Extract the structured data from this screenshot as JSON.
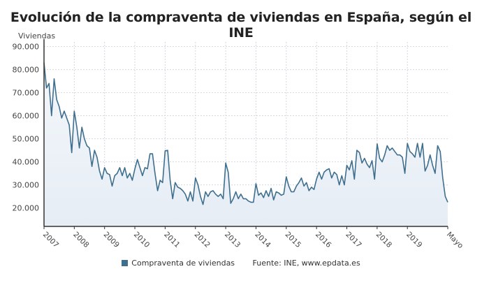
{
  "chart_data": {
    "type": "area",
    "title": "Evolución de la compraventa de viviendas en España, según el INE",
    "ylabel": "Viviendas",
    "xlabel": "",
    "ylim": [
      12000,
      92000
    ],
    "yticks": [
      20000,
      30000,
      40000,
      50000,
      60000,
      70000,
      80000,
      90000
    ],
    "ytick_labels": [
      "20.000",
      "30.000",
      "40.000",
      "50.000",
      "60.000",
      "70.000",
      "80.000",
      "90.000"
    ],
    "xtick_labels": [
      "2007",
      "2008",
      "2009",
      "2010",
      "2011",
      "2012",
      "2013",
      "2014",
      "2015",
      "2016",
      "2017",
      "2018",
      "2019",
      "Mayo"
    ],
    "x_start": "2007-01",
    "x_end": "2020-05",
    "frequency": "monthly",
    "grid": true,
    "legend_position": "bottom",
    "line_color": "#3f6f8e",
    "series": [
      {
        "name": "Compraventa de viviendas",
        "values": [
          83000,
          72000,
          74000,
          60000,
          76000,
          67000,
          64000,
          59000,
          62000,
          59000,
          56000,
          44000,
          62000,
          55000,
          46000,
          55000,
          50000,
          47000,
          46000,
          38000,
          45000,
          42000,
          36000,
          32500,
          37500,
          35000,
          34500,
          29500,
          34000,
          35000,
          37500,
          34000,
          37500,
          33000,
          35000,
          32000,
          37000,
          41000,
          37500,
          34000,
          37500,
          37000,
          43500,
          43500,
          35000,
          27500,
          32000,
          31000,
          44800,
          45000,
          32000,
          24000,
          31000,
          29000,
          28500,
          27500,
          26000,
          23000,
          27000,
          23000,
          33000,
          30000,
          25000,
          21500,
          27000,
          25000,
          27000,
          27500,
          26000,
          25000,
          26000,
          24000,
          39500,
          35500,
          22000,
          24000,
          27000,
          24000,
          26000,
          24000,
          24000,
          23000,
          22500,
          22500,
          30500,
          25500,
          26500,
          24500,
          27500,
          25000,
          28500,
          23500,
          27000,
          26500,
          25500,
          26000,
          33500,
          29500,
          27000,
          27000,
          29500,
          31000,
          33000,
          29500,
          31000,
          27500,
          29000,
          28000,
          32500,
          35500,
          32500,
          35500,
          36500,
          37000,
          33000,
          35500,
          34500,
          30000,
          34000,
          30000,
          38500,
          36500,
          40500,
          32500,
          45000,
          44000,
          39500,
          41500,
          39000,
          37500,
          40500,
          32500,
          47800,
          41500,
          40000,
          43000,
          47000,
          45000,
          46000,
          44500,
          43000,
          43000,
          42000,
          35000,
          48000,
          44500,
          43500,
          42000,
          48000,
          42000,
          48000,
          36000,
          38500,
          43000,
          38500,
          35000,
          47000,
          44500,
          33000,
          25000,
          22500
        ]
      }
    ],
    "source": "Fuente: INE, www.epdata.es"
  }
}
